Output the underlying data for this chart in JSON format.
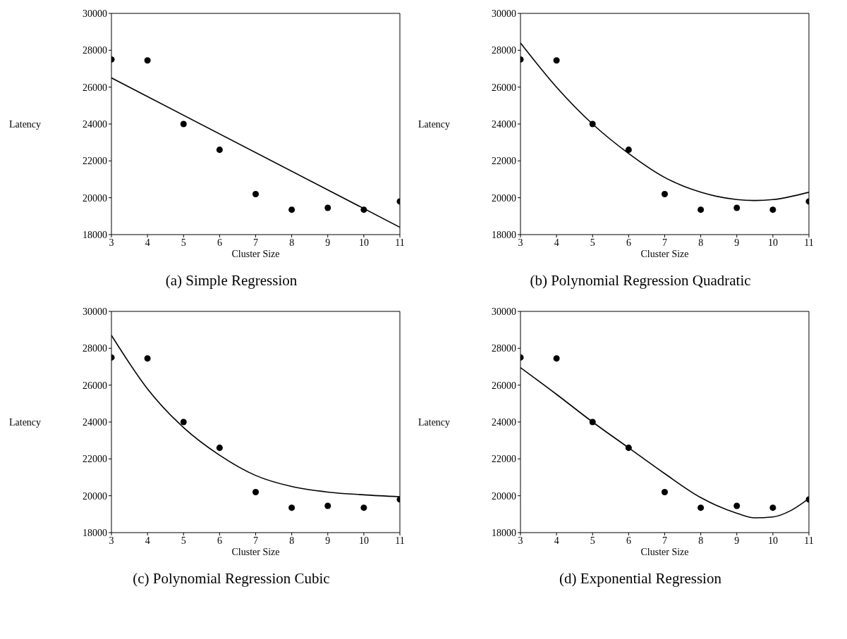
{
  "chart_data": [
    {
      "type": "scatter",
      "title": "(a) Simple Regression",
      "xlabel": "Cluster Size",
      "ylabel": "Latency",
      "xlim": [
        3,
        11
      ],
      "xticks": [
        3,
        4,
        5,
        6,
        7,
        8,
        9,
        10,
        11
      ],
      "ylim": [
        18000,
        30000
      ],
      "yticks": [
        18000,
        20000,
        22000,
        24000,
        26000,
        28000,
        30000
      ],
      "grid": false,
      "series": [
        {
          "color": "#000000",
          "marker": "circle",
          "x": [
            3,
            4,
            5,
            6,
            7,
            8,
            9,
            10,
            11
          ],
          "values": [
            27500,
            27450,
            24000,
            22600,
            20200,
            19350,
            19450,
            19350,
            19800
          ]
        },
        {
          "type": "line",
          "color": "#000000",
          "line_style": "solid",
          "x": [
            3,
            11
          ],
          "values": [
            26500,
            18400
          ]
        }
      ]
    },
    {
      "type": "scatter",
      "title": "(b) Polynomial Regression Quadratic",
      "xlabel": "Cluster Size",
      "ylabel": "Latency",
      "xlim": [
        3,
        11
      ],
      "xticks": [
        3,
        4,
        5,
        6,
        7,
        8,
        9,
        10,
        11
      ],
      "ylim": [
        18000,
        30000
      ],
      "yticks": [
        18000,
        20000,
        22000,
        24000,
        26000,
        28000,
        30000
      ],
      "grid": false,
      "series": [
        {
          "color": "#000000",
          "marker": "circle",
          "x": [
            3,
            4,
            5,
            6,
            7,
            8,
            9,
            10,
            11
          ],
          "values": [
            27500,
            27450,
            24000,
            22600,
            20200,
            19350,
            19450,
            19350,
            19800
          ]
        },
        {
          "type": "line",
          "color": "#000000",
          "line_style": "solid",
          "x": [
            3,
            4,
            5,
            6,
            7,
            8,
            9,
            9.5,
            10,
            11
          ],
          "values": [
            28400,
            26000,
            24000,
            22400,
            21100,
            20300,
            19900,
            19850,
            19900,
            20300
          ]
        }
      ]
    },
    {
      "type": "scatter",
      "title": "(c) Polynomial Regression Cubic",
      "xlabel": "Cluster Size",
      "ylabel": "Latency",
      "xlim": [
        3,
        11
      ],
      "xticks": [
        3,
        4,
        5,
        6,
        7,
        8,
        9,
        10,
        11
      ],
      "ylim": [
        18000,
        30000
      ],
      "yticks": [
        18000,
        20000,
        22000,
        24000,
        26000,
        28000,
        30000
      ],
      "grid": false,
      "series": [
        {
          "color": "#000000",
          "marker": "circle",
          "x": [
            3,
            4,
            5,
            6,
            7,
            8,
            9,
            10,
            11
          ],
          "values": [
            27500,
            27450,
            24000,
            22600,
            20200,
            19350,
            19450,
            19350,
            19800
          ]
        },
        {
          "type": "line",
          "color": "#000000",
          "line_style": "solid",
          "x": [
            3,
            4,
            5,
            6,
            7,
            8,
            9,
            10,
            11
          ],
          "values": [
            28700,
            25800,
            23700,
            22200,
            21100,
            20500,
            20200,
            20050,
            19950
          ]
        }
      ]
    },
    {
      "type": "scatter",
      "title": "(d) Exponential Regression",
      "xlabel": "Cluster Size",
      "ylabel": "Latency",
      "xlim": [
        3,
        11
      ],
      "xticks": [
        3,
        4,
        5,
        6,
        7,
        8,
        9,
        10,
        11
      ],
      "ylim": [
        18000,
        30000
      ],
      "yticks": [
        18000,
        20000,
        22000,
        24000,
        26000,
        28000,
        30000
      ],
      "grid": false,
      "series": [
        {
          "color": "#000000",
          "marker": "circle",
          "x": [
            3,
            4,
            5,
            6,
            7,
            8,
            9,
            10,
            11
          ],
          "values": [
            27500,
            27450,
            24000,
            22600,
            20200,
            19350,
            19450,
            19350,
            19800
          ]
        },
        {
          "type": "line",
          "color": "#000000",
          "line_style": "solid",
          "x": [
            3,
            4,
            5,
            6,
            7,
            8,
            9,
            9.5,
            10,
            10.5,
            11
          ],
          "values": [
            26950,
            25500,
            24000,
            22600,
            21200,
            19900,
            19050,
            18800,
            18850,
            19200,
            19850
          ]
        }
      ]
    }
  ]
}
